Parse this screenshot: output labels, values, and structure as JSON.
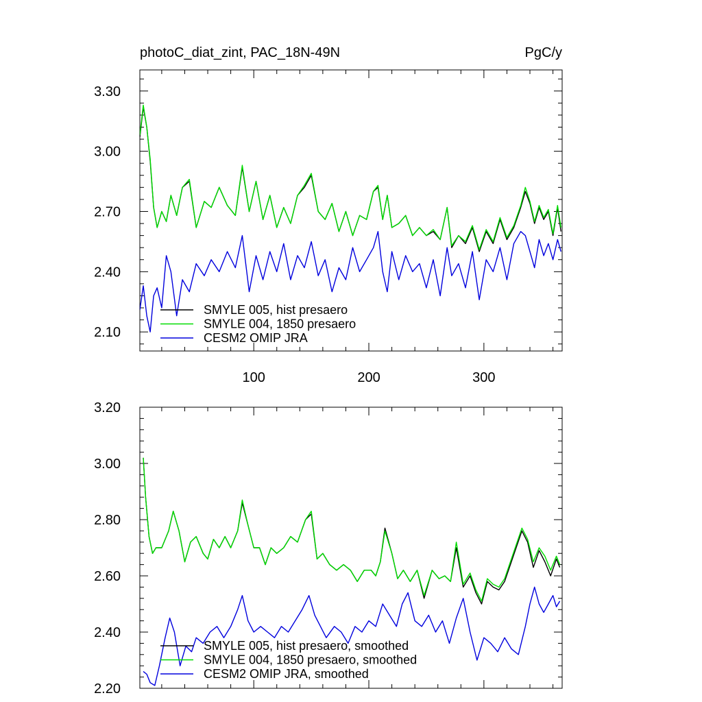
{
  "header": {
    "title": "photoC_diat_zint, PAC_18N-49N",
    "units": "PgC/y"
  },
  "chart_data": [
    {
      "type": "line",
      "xlim": [
        1,
        368
      ],
      "ylim": [
        2.005,
        3.405
      ],
      "xticks": [
        100,
        200,
        300
      ],
      "xtick_labels": [
        "100",
        "200",
        "300"
      ],
      "yticks": [
        2.1,
        2.4,
        2.7,
        3.0,
        3.3
      ],
      "ytick_labels": [
        "2.10",
        "2.40",
        "2.70",
        "3.00",
        "3.30"
      ],
      "grid": false,
      "legend_position": "bottom-left",
      "series": [
        {
          "name": "SMYLE 005, hist presaero",
          "color": "#000000",
          "x": [
            1,
            4,
            7,
            10,
            13,
            16,
            20,
            24,
            28,
            33,
            38,
            44,
            50,
            57,
            63,
            70,
            77,
            84,
            90,
            96,
            102,
            108,
            114,
            120,
            126,
            132,
            138,
            144,
            150,
            156,
            162,
            168,
            174,
            180,
            186,
            192,
            198,
            204,
            208,
            212,
            216,
            220,
            226,
            232,
            238,
            244,
            250,
            256,
            262,
            268,
            272,
            278,
            284,
            290,
            296,
            302,
            308,
            314,
            320,
            326,
            332,
            336,
            340,
            344,
            348,
            352,
            356,
            360,
            364,
            367
          ],
          "values": [
            3.07,
            3.22,
            3.12,
            2.95,
            2.72,
            2.62,
            2.7,
            2.65,
            2.78,
            2.68,
            2.82,
            2.85,
            2.62,
            2.75,
            2.72,
            2.82,
            2.73,
            2.68,
            2.92,
            2.7,
            2.85,
            2.66,
            2.78,
            2.62,
            2.72,
            2.64,
            2.78,
            2.82,
            2.88,
            2.7,
            2.66,
            2.74,
            2.6,
            2.7,
            2.58,
            2.68,
            2.66,
            2.8,
            2.82,
            2.66,
            2.78,
            2.62,
            2.64,
            2.68,
            2.58,
            2.62,
            2.58,
            2.6,
            2.56,
            2.72,
            2.52,
            2.58,
            2.54,
            2.62,
            2.5,
            2.6,
            2.54,
            2.66,
            2.56,
            2.62,
            2.72,
            2.8,
            2.74,
            2.64,
            2.72,
            2.66,
            2.7,
            2.58,
            2.72,
            2.6
          ]
        },
        {
          "name": "SMYLE 004, 1850 presaero",
          "color": "#00dd00",
          "x": [
            1,
            4,
            7,
            10,
            13,
            16,
            20,
            24,
            28,
            33,
            38,
            44,
            50,
            57,
            63,
            70,
            77,
            84,
            90,
            96,
            102,
            108,
            114,
            120,
            126,
            132,
            138,
            144,
            150,
            156,
            162,
            168,
            174,
            180,
            186,
            192,
            198,
            204,
            208,
            212,
            216,
            220,
            226,
            232,
            238,
            244,
            250,
            256,
            262,
            268,
            272,
            278,
            284,
            290,
            296,
            302,
            308,
            314,
            320,
            326,
            332,
            336,
            340,
            344,
            348,
            352,
            356,
            360,
            364,
            367
          ],
          "values": [
            3.08,
            3.23,
            3.12,
            2.96,
            2.72,
            2.62,
            2.7,
            2.65,
            2.78,
            2.68,
            2.82,
            2.86,
            2.62,
            2.75,
            2.72,
            2.82,
            2.73,
            2.68,
            2.93,
            2.7,
            2.85,
            2.66,
            2.78,
            2.62,
            2.72,
            2.64,
            2.78,
            2.83,
            2.89,
            2.7,
            2.66,
            2.74,
            2.6,
            2.7,
            2.58,
            2.68,
            2.66,
            2.8,
            2.83,
            2.66,
            2.78,
            2.62,
            2.64,
            2.68,
            2.58,
            2.62,
            2.58,
            2.61,
            2.56,
            2.72,
            2.53,
            2.58,
            2.55,
            2.63,
            2.51,
            2.61,
            2.55,
            2.67,
            2.57,
            2.63,
            2.73,
            2.82,
            2.75,
            2.65,
            2.73,
            2.67,
            2.71,
            2.59,
            2.73,
            2.62
          ]
        },
        {
          "name": "CESM2 OMIP JRA",
          "color": "#0000dd",
          "x": [
            1,
            4,
            7,
            10,
            13,
            16,
            20,
            24,
            28,
            33,
            38,
            44,
            50,
            57,
            63,
            70,
            77,
            84,
            90,
            96,
            102,
            108,
            114,
            120,
            126,
            132,
            138,
            144,
            150,
            156,
            162,
            168,
            174,
            180,
            186,
            192,
            198,
            204,
            208,
            212,
            216,
            220,
            226,
            232,
            238,
            244,
            250,
            256,
            262,
            268,
            272,
            278,
            284,
            290,
            296,
            302,
            308,
            314,
            320,
            326,
            332,
            336,
            340,
            344,
            348,
            352,
            356,
            360,
            364,
            367
          ],
          "values": [
            2.21,
            2.33,
            2.18,
            2.1,
            2.28,
            2.32,
            2.22,
            2.48,
            2.4,
            2.18,
            2.36,
            2.3,
            2.44,
            2.38,
            2.46,
            2.4,
            2.5,
            2.42,
            2.58,
            2.3,
            2.48,
            2.36,
            2.5,
            2.4,
            2.54,
            2.36,
            2.48,
            2.42,
            2.55,
            2.38,
            2.46,
            2.3,
            2.42,
            2.36,
            2.52,
            2.4,
            2.46,
            2.52,
            2.6,
            2.4,
            2.3,
            2.5,
            2.36,
            2.48,
            2.4,
            2.44,
            2.32,
            2.46,
            2.28,
            2.52,
            2.38,
            2.44,
            2.32,
            2.5,
            2.26,
            2.46,
            2.4,
            2.52,
            2.36,
            2.54,
            2.6,
            2.58,
            2.5,
            2.42,
            2.56,
            2.48,
            2.54,
            2.46,
            2.56,
            2.5
          ]
        }
      ]
    },
    {
      "type": "line",
      "xlim": [
        1,
        368
      ],
      "ylim": [
        2.2,
        3.2
      ],
      "xticks": [
        100,
        200,
        300
      ],
      "yticks": [
        2.2,
        2.4,
        2.6,
        2.8,
        3.0,
        3.2
      ],
      "ytick_labels": [
        "2.20",
        "2.40",
        "2.60",
        "2.80",
        "3.00",
        "3.20"
      ],
      "grid": false,
      "legend_position": "bottom-left",
      "series": [
        {
          "name": "SMYLE 005, hist presaero, smoothed",
          "color": "#000000",
          "x": [
            4,
            6,
            9,
            12,
            15,
            20,
            26,
            30,
            35,
            40,
            45,
            50,
            56,
            60,
            65,
            70,
            75,
            80,
            86,
            90,
            95,
            100,
            105,
            110,
            115,
            120,
            126,
            132,
            138,
            145,
            150,
            155,
            160,
            166,
            172,
            178,
            184,
            190,
            196,
            202,
            206,
            210,
            214,
            220,
            225,
            230,
            236,
            242,
            248,
            255,
            261,
            266,
            271,
            276,
            282,
            288,
            293,
            298,
            303,
            308,
            313,
            318,
            323,
            328,
            333,
            338,
            343,
            348,
            353,
            358,
            363,
            366
          ],
          "values": [
            3.02,
            2.88,
            2.74,
            2.68,
            2.7,
            2.7,
            2.76,
            2.83,
            2.76,
            2.65,
            2.72,
            2.74,
            2.68,
            2.66,
            2.73,
            2.7,
            2.74,
            2.7,
            2.76,
            2.86,
            2.78,
            2.7,
            2.7,
            2.64,
            2.7,
            2.68,
            2.7,
            2.74,
            2.72,
            2.8,
            2.82,
            2.66,
            2.68,
            2.64,
            2.62,
            2.64,
            2.62,
            2.58,
            2.62,
            2.62,
            2.6,
            2.65,
            2.77,
            2.68,
            2.59,
            2.62,
            2.58,
            2.62,
            2.52,
            2.62,
            2.59,
            2.6,
            2.58,
            2.7,
            2.56,
            2.6,
            2.54,
            2.5,
            2.58,
            2.56,
            2.55,
            2.58,
            2.64,
            2.7,
            2.76,
            2.72,
            2.63,
            2.69,
            2.65,
            2.6,
            2.66,
            2.63
          ]
        },
        {
          "name": "SMYLE 004, 1850 presaero, smoothed",
          "color": "#00dd00",
          "x": [
            4,
            6,
            9,
            12,
            15,
            20,
            26,
            30,
            35,
            40,
            45,
            50,
            56,
            60,
            65,
            70,
            75,
            80,
            86,
            90,
            95,
            100,
            105,
            110,
            115,
            120,
            126,
            132,
            138,
            145,
            150,
            155,
            160,
            166,
            172,
            178,
            184,
            190,
            196,
            202,
            206,
            210,
            214,
            220,
            225,
            230,
            236,
            242,
            248,
            255,
            261,
            266,
            271,
            276,
            282,
            288,
            293,
            298,
            303,
            308,
            313,
            318,
            323,
            328,
            333,
            338,
            343,
            348,
            353,
            358,
            363,
            366
          ],
          "values": [
            3.02,
            2.88,
            2.74,
            2.68,
            2.7,
            2.7,
            2.76,
            2.83,
            2.76,
            2.65,
            2.72,
            2.74,
            2.68,
            2.66,
            2.73,
            2.7,
            2.74,
            2.7,
            2.76,
            2.87,
            2.78,
            2.7,
            2.7,
            2.64,
            2.7,
            2.68,
            2.7,
            2.74,
            2.72,
            2.8,
            2.83,
            2.66,
            2.68,
            2.64,
            2.62,
            2.64,
            2.62,
            2.58,
            2.62,
            2.62,
            2.6,
            2.65,
            2.76,
            2.68,
            2.59,
            2.62,
            2.58,
            2.62,
            2.53,
            2.62,
            2.59,
            2.6,
            2.58,
            2.72,
            2.57,
            2.61,
            2.55,
            2.51,
            2.59,
            2.57,
            2.56,
            2.59,
            2.65,
            2.71,
            2.77,
            2.73,
            2.65,
            2.7,
            2.67,
            2.62,
            2.67,
            2.64
          ]
        },
        {
          "name": "CESM2 OMIP JRA, smoothed",
          "color": "#0000dd",
          "x": [
            4,
            7,
            10,
            14,
            18,
            23,
            27,
            31,
            36,
            41,
            46,
            50,
            56,
            62,
            68,
            74,
            80,
            86,
            90,
            95,
            100,
            106,
            112,
            118,
            124,
            130,
            136,
            142,
            148,
            153,
            158,
            163,
            170,
            176,
            182,
            188,
            194,
            200,
            206,
            212,
            218,
            224,
            229,
            234,
            240,
            246,
            252,
            258,
            264,
            270,
            276,
            282,
            288,
            294,
            300,
            306,
            312,
            318,
            324,
            330,
            336,
            340,
            344,
            348,
            352,
            356,
            360,
            363,
            366
          ],
          "values": [
            2.26,
            2.25,
            2.22,
            2.21,
            2.28,
            2.38,
            2.45,
            2.4,
            2.28,
            2.35,
            2.33,
            2.38,
            2.36,
            2.4,
            2.42,
            2.38,
            2.42,
            2.48,
            2.53,
            2.44,
            2.4,
            2.42,
            2.4,
            2.38,
            2.42,
            2.4,
            2.44,
            2.48,
            2.53,
            2.46,
            2.42,
            2.38,
            2.42,
            2.4,
            2.36,
            2.42,
            2.4,
            2.44,
            2.42,
            2.5,
            2.46,
            2.42,
            2.5,
            2.54,
            2.44,
            2.42,
            2.46,
            2.4,
            2.44,
            2.36,
            2.45,
            2.52,
            2.4,
            2.3,
            2.38,
            2.36,
            2.33,
            2.38,
            2.34,
            2.32,
            2.42,
            2.5,
            2.56,
            2.5,
            2.47,
            2.5,
            2.53,
            2.49,
            2.51
          ]
        }
      ]
    }
  ]
}
